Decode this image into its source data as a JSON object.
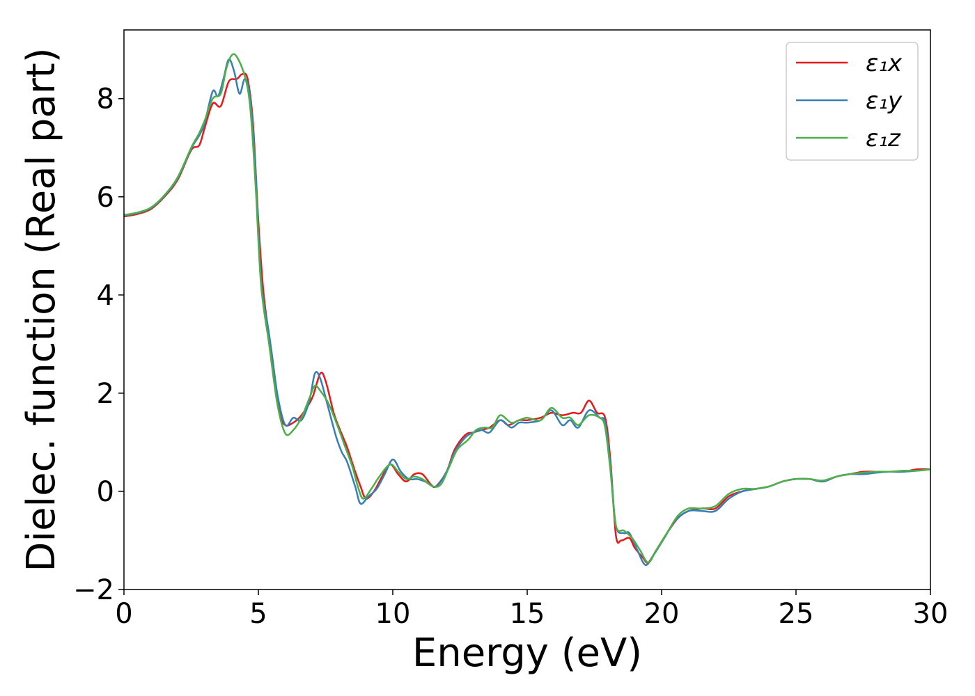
{
  "chart_data": {
    "type": "line",
    "title": "",
    "xlabel": "Energy (eV)",
    "ylabel": "Dielec. function (Real part)",
    "xlim": [
      0,
      30
    ],
    "ylim": [
      -2,
      9.4
    ],
    "xticks": [
      0,
      5,
      10,
      15,
      20,
      25,
      30
    ],
    "yticks": [
      -2,
      0,
      2,
      4,
      6,
      8
    ],
    "ytick_labels": [
      "−2",
      "0",
      "2",
      "4",
      "6",
      "8"
    ],
    "grid": false,
    "legend_position": "top-right",
    "series": [
      {
        "name": "ε₁x",
        "color": "#e41a1c",
        "points": [
          [
            0,
            5.6
          ],
          [
            0.5,
            5.65
          ],
          [
            1,
            5.75
          ],
          [
            1.5,
            6.0
          ],
          [
            2,
            6.35
          ],
          [
            2.5,
            6.95
          ],
          [
            2.8,
            7.05
          ],
          [
            3.0,
            7.4
          ],
          [
            3.3,
            7.9
          ],
          [
            3.6,
            7.85
          ],
          [
            3.9,
            8.35
          ],
          [
            4.2,
            8.4
          ],
          [
            4.4,
            8.5
          ],
          [
            4.6,
            8.4
          ],
          [
            4.8,
            7.5
          ],
          [
            5.0,
            5.5
          ],
          [
            5.2,
            4.0
          ],
          [
            5.5,
            2.8
          ],
          [
            5.8,
            1.6
          ],
          [
            6.0,
            1.35
          ],
          [
            6.3,
            1.4
          ],
          [
            6.6,
            1.55
          ],
          [
            7.0,
            1.9
          ],
          [
            7.3,
            2.4
          ],
          [
            7.5,
            2.25
          ],
          [
            7.8,
            1.6
          ],
          [
            8.0,
            1.3
          ],
          [
            8.3,
            0.9
          ],
          [
            8.6,
            0.4
          ],
          [
            8.8,
            0.1
          ],
          [
            9.0,
            -0.15
          ],
          [
            9.3,
            0.0
          ],
          [
            9.6,
            0.3
          ],
          [
            9.9,
            0.55
          ],
          [
            10.2,
            0.35
          ],
          [
            10.5,
            0.2
          ],
          [
            10.8,
            0.35
          ],
          [
            11.1,
            0.35
          ],
          [
            11.4,
            0.15
          ],
          [
            11.6,
            0.1
          ],
          [
            12.0,
            0.4
          ],
          [
            12.3,
            0.85
          ],
          [
            12.7,
            1.15
          ],
          [
            13.0,
            1.2
          ],
          [
            13.3,
            1.25
          ],
          [
            13.6,
            1.3
          ],
          [
            14.0,
            1.45
          ],
          [
            14.3,
            1.35
          ],
          [
            14.7,
            1.45
          ],
          [
            15.0,
            1.45
          ],
          [
            15.5,
            1.5
          ],
          [
            15.9,
            1.6
          ],
          [
            16.3,
            1.55
          ],
          [
            16.7,
            1.6
          ],
          [
            17.0,
            1.6
          ],
          [
            17.3,
            1.85
          ],
          [
            17.6,
            1.6
          ],
          [
            17.9,
            1.5
          ],
          [
            18.1,
            0.6
          ],
          [
            18.3,
            -0.9
          ],
          [
            18.5,
            -1.0
          ],
          [
            18.8,
            -0.95
          ],
          [
            19.0,
            -1.15
          ],
          [
            19.3,
            -1.35
          ],
          [
            19.5,
            -1.45
          ],
          [
            19.8,
            -1.2
          ],
          [
            20.2,
            -0.85
          ],
          [
            20.6,
            -0.55
          ],
          [
            21.0,
            -0.4
          ],
          [
            21.5,
            -0.35
          ],
          [
            22.0,
            -0.35
          ],
          [
            22.5,
            -0.1
          ],
          [
            23.0,
            0.0
          ],
          [
            23.5,
            0.05
          ],
          [
            24.0,
            0.1
          ],
          [
            24.5,
            0.2
          ],
          [
            25.0,
            0.25
          ],
          [
            25.5,
            0.25
          ],
          [
            26.0,
            0.2
          ],
          [
            26.5,
            0.3
          ],
          [
            27.0,
            0.35
          ],
          [
            27.5,
            0.4
          ],
          [
            28.0,
            0.4
          ],
          [
            28.5,
            0.4
          ],
          [
            29.0,
            0.4
          ],
          [
            29.5,
            0.45
          ],
          [
            30.0,
            0.45
          ]
        ]
      },
      {
        "name": "ε₁y",
        "color": "#377eb8",
        "points": [
          [
            0,
            5.62
          ],
          [
            0.5,
            5.67
          ],
          [
            1,
            5.77
          ],
          [
            1.5,
            6.02
          ],
          [
            2,
            6.38
          ],
          [
            2.5,
            6.98
          ],
          [
            2.8,
            7.25
          ],
          [
            3.0,
            7.5
          ],
          [
            3.3,
            8.15
          ],
          [
            3.5,
            8.05
          ],
          [
            3.7,
            8.4
          ],
          [
            3.9,
            8.8
          ],
          [
            4.1,
            8.55
          ],
          [
            4.3,
            8.1
          ],
          [
            4.5,
            8.4
          ],
          [
            4.7,
            8.0
          ],
          [
            4.9,
            6.5
          ],
          [
            5.1,
            4.3
          ],
          [
            5.4,
            3.2
          ],
          [
            5.7,
            2.0
          ],
          [
            6.0,
            1.35
          ],
          [
            6.3,
            1.5
          ],
          [
            6.6,
            1.45
          ],
          [
            6.9,
            1.85
          ],
          [
            7.1,
            2.4
          ],
          [
            7.3,
            2.3
          ],
          [
            7.6,
            1.7
          ],
          [
            7.9,
            1.1
          ],
          [
            8.1,
            0.8
          ],
          [
            8.3,
            0.6
          ],
          [
            8.6,
            0.1
          ],
          [
            8.8,
            -0.25
          ],
          [
            9.1,
            -0.1
          ],
          [
            9.4,
            0.05
          ],
          [
            9.7,
            0.35
          ],
          [
            10.0,
            0.65
          ],
          [
            10.3,
            0.4
          ],
          [
            10.6,
            0.25
          ],
          [
            10.9,
            0.25
          ],
          [
            11.2,
            0.2
          ],
          [
            11.6,
            0.1
          ],
          [
            12.0,
            0.4
          ],
          [
            12.3,
            0.8
          ],
          [
            12.7,
            1.1
          ],
          [
            13.0,
            1.2
          ],
          [
            13.3,
            1.25
          ],
          [
            13.6,
            1.2
          ],
          [
            14.0,
            1.45
          ],
          [
            14.4,
            1.3
          ],
          [
            14.7,
            1.4
          ],
          [
            15.0,
            1.4
          ],
          [
            15.5,
            1.45
          ],
          [
            15.9,
            1.65
          ],
          [
            16.3,
            1.35
          ],
          [
            16.6,
            1.45
          ],
          [
            16.9,
            1.3
          ],
          [
            17.3,
            1.65
          ],
          [
            17.7,
            1.5
          ],
          [
            17.9,
            1.4
          ],
          [
            18.1,
            0.5
          ],
          [
            18.3,
            -0.7
          ],
          [
            18.6,
            -0.85
          ],
          [
            18.8,
            -0.85
          ],
          [
            19.1,
            -1.2
          ],
          [
            19.4,
            -1.5
          ],
          [
            19.7,
            -1.3
          ],
          [
            20.1,
            -0.95
          ],
          [
            20.5,
            -0.6
          ],
          [
            21.0,
            -0.4
          ],
          [
            21.5,
            -0.4
          ],
          [
            22.0,
            -0.4
          ],
          [
            22.5,
            -0.15
          ],
          [
            23.0,
            0.0
          ],
          [
            23.5,
            0.05
          ],
          [
            24.0,
            0.1
          ],
          [
            24.5,
            0.2
          ],
          [
            25.0,
            0.25
          ],
          [
            25.5,
            0.25
          ],
          [
            26.0,
            0.2
          ],
          [
            26.5,
            0.3
          ],
          [
            27.0,
            0.35
          ],
          [
            27.5,
            0.35
          ],
          [
            28.0,
            0.38
          ],
          [
            28.5,
            0.4
          ],
          [
            29.0,
            0.4
          ],
          [
            29.5,
            0.42
          ],
          [
            30.0,
            0.45
          ]
        ]
      },
      {
        "name": "ε₁z",
        "color": "#4daf4a",
        "points": [
          [
            0,
            5.63
          ],
          [
            0.5,
            5.68
          ],
          [
            1,
            5.78
          ],
          [
            1.5,
            6.03
          ],
          [
            2,
            6.4
          ],
          [
            2.5,
            7.0
          ],
          [
            2.8,
            7.3
          ],
          [
            3.0,
            7.55
          ],
          [
            3.3,
            8.0
          ],
          [
            3.6,
            8.1
          ],
          [
            3.8,
            8.6
          ],
          [
            4.0,
            8.88
          ],
          [
            4.2,
            8.85
          ],
          [
            4.5,
            8.45
          ],
          [
            4.7,
            7.8
          ],
          [
            4.9,
            6.2
          ],
          [
            5.1,
            4.2
          ],
          [
            5.4,
            3.0
          ],
          [
            5.7,
            1.8
          ],
          [
            6.0,
            1.18
          ],
          [
            6.3,
            1.25
          ],
          [
            6.6,
            1.5
          ],
          [
            6.9,
            1.9
          ],
          [
            7.1,
            2.15
          ],
          [
            7.3,
            2.05
          ],
          [
            7.6,
            1.8
          ],
          [
            7.9,
            1.4
          ],
          [
            8.2,
            0.95
          ],
          [
            8.5,
            0.5
          ],
          [
            8.7,
            0.1
          ],
          [
            8.9,
            -0.15
          ],
          [
            9.2,
            0.05
          ],
          [
            9.5,
            0.3
          ],
          [
            9.9,
            0.55
          ],
          [
            10.2,
            0.4
          ],
          [
            10.5,
            0.25
          ],
          [
            10.8,
            0.3
          ],
          [
            11.1,
            0.25
          ],
          [
            11.5,
            0.1
          ],
          [
            11.8,
            0.15
          ],
          [
            12.1,
            0.5
          ],
          [
            12.4,
            0.85
          ],
          [
            12.8,
            1.05
          ],
          [
            13.1,
            1.25
          ],
          [
            13.4,
            1.3
          ],
          [
            13.7,
            1.3
          ],
          [
            14.0,
            1.55
          ],
          [
            14.4,
            1.4
          ],
          [
            14.7,
            1.45
          ],
          [
            15.0,
            1.5
          ],
          [
            15.5,
            1.45
          ],
          [
            15.9,
            1.7
          ],
          [
            16.3,
            1.5
          ],
          [
            16.6,
            1.5
          ],
          [
            16.9,
            1.35
          ],
          [
            17.3,
            1.55
          ],
          [
            17.7,
            1.5
          ],
          [
            17.9,
            1.3
          ],
          [
            18.1,
            0.4
          ],
          [
            18.3,
            -0.7
          ],
          [
            18.6,
            -0.8
          ],
          [
            18.9,
            -0.95
          ],
          [
            19.2,
            -1.2
          ],
          [
            19.5,
            -1.45
          ],
          [
            19.8,
            -1.2
          ],
          [
            20.2,
            -0.85
          ],
          [
            20.6,
            -0.5
          ],
          [
            21.0,
            -0.35
          ],
          [
            21.5,
            -0.35
          ],
          [
            22.0,
            -0.3
          ],
          [
            22.5,
            -0.05
          ],
          [
            23.0,
            0.05
          ],
          [
            23.5,
            0.05
          ],
          [
            24.0,
            0.1
          ],
          [
            24.5,
            0.2
          ],
          [
            25.0,
            0.25
          ],
          [
            25.5,
            0.25
          ],
          [
            26.0,
            0.22
          ],
          [
            26.5,
            0.3
          ],
          [
            27.0,
            0.35
          ],
          [
            27.5,
            0.38
          ],
          [
            28.0,
            0.4
          ],
          [
            28.5,
            0.4
          ],
          [
            29.0,
            0.42
          ],
          [
            29.5,
            0.42
          ],
          [
            30.0,
            0.45
          ]
        ]
      }
    ]
  }
}
